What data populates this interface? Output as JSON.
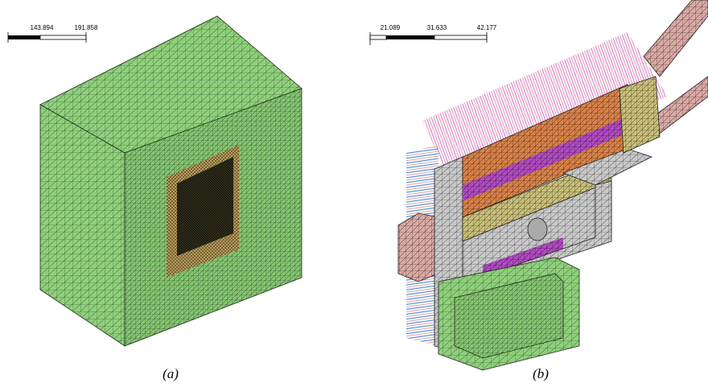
{
  "panels": [
    {
      "scale_labels": [
        "143.894",
        "191.858"
      ],
      "caption": "(a)"
    },
    {
      "scale_labels": [
        "21.089",
        "31.633",
        "42.177"
      ],
      "caption": "(b)"
    }
  ]
}
